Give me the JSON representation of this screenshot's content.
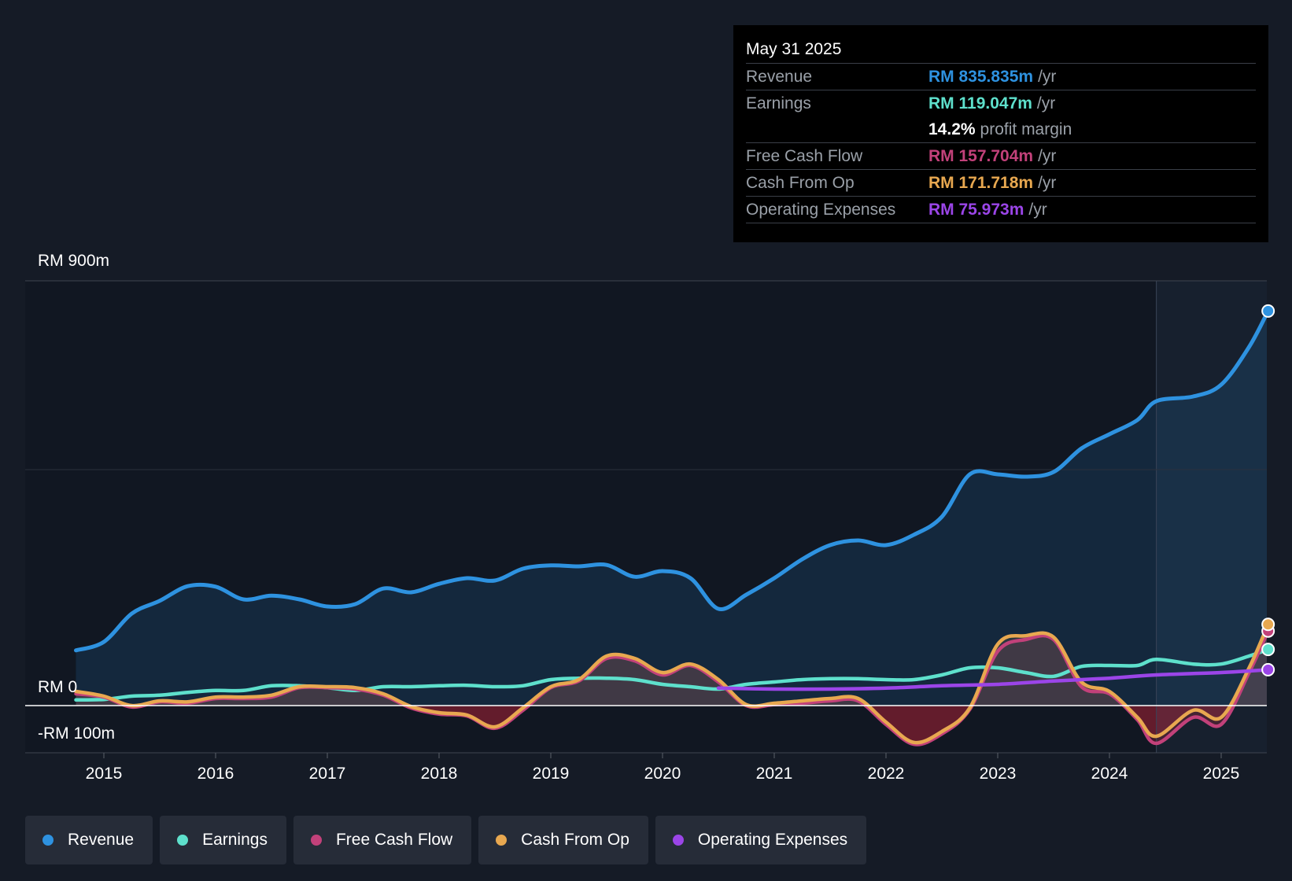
{
  "chart_data": {
    "type": "line",
    "y_axis": {
      "top_label": "RM 900m",
      "zero_label": "RM 0",
      "bottom_label": "-RM 100m",
      "ylim": [
        -100,
        900
      ]
    },
    "x_ticks": [
      "2015",
      "2016",
      "2017",
      "2018",
      "2019",
      "2020",
      "2021",
      "2022",
      "2023",
      "2024",
      "2025"
    ],
    "xlim": [
      2014.75,
      2025.42
    ],
    "forecast_start": 2024.42,
    "series": [
      {
        "name": "Revenue",
        "color": "#2e92e0",
        "fill": true,
        "points": [
          [
            2014.75,
            117
          ],
          [
            2015.0,
            135
          ],
          [
            2015.25,
            195
          ],
          [
            2015.5,
            222
          ],
          [
            2015.75,
            253
          ],
          [
            2016.0,
            252
          ],
          [
            2016.25,
            225
          ],
          [
            2016.5,
            233
          ],
          [
            2016.75,
            225
          ],
          [
            2017.0,
            210
          ],
          [
            2017.25,
            215
          ],
          [
            2017.5,
            248
          ],
          [
            2017.75,
            240
          ],
          [
            2018.0,
            258
          ],
          [
            2018.25,
            270
          ],
          [
            2018.5,
            265
          ],
          [
            2018.75,
            290
          ],
          [
            2019.0,
            297
          ],
          [
            2019.25,
            295
          ],
          [
            2019.5,
            298
          ],
          [
            2019.75,
            273
          ],
          [
            2020.0,
            285
          ],
          [
            2020.25,
            270
          ],
          [
            2020.5,
            205
          ],
          [
            2020.75,
            235
          ],
          [
            2021.0,
            270
          ],
          [
            2021.25,
            310
          ],
          [
            2021.5,
            340
          ],
          [
            2021.75,
            350
          ],
          [
            2022.0,
            340
          ],
          [
            2022.25,
            362
          ],
          [
            2022.5,
            400
          ],
          [
            2022.75,
            490
          ],
          [
            2023.0,
            490
          ],
          [
            2023.25,
            485
          ],
          [
            2023.5,
            495
          ],
          [
            2023.75,
            545
          ],
          [
            2024.0,
            575
          ],
          [
            2024.25,
            605
          ],
          [
            2024.42,
            645
          ],
          [
            2024.75,
            655
          ],
          [
            2025.0,
            680
          ],
          [
            2025.25,
            760
          ],
          [
            2025.42,
            836
          ]
        ]
      },
      {
        "name": "Earnings",
        "color": "#5ee0cc",
        "fill": false,
        "points": [
          [
            2014.75,
            12
          ],
          [
            2015.0,
            13
          ],
          [
            2015.25,
            20
          ],
          [
            2015.5,
            22
          ],
          [
            2015.75,
            28
          ],
          [
            2016.0,
            32
          ],
          [
            2016.25,
            32
          ],
          [
            2016.5,
            42
          ],
          [
            2016.75,
            42
          ],
          [
            2017.0,
            38
          ],
          [
            2017.25,
            32
          ],
          [
            2017.5,
            40
          ],
          [
            2017.75,
            40
          ],
          [
            2018.0,
            42
          ],
          [
            2018.25,
            43
          ],
          [
            2018.5,
            40
          ],
          [
            2018.75,
            42
          ],
          [
            2019.0,
            55
          ],
          [
            2019.25,
            58
          ],
          [
            2019.5,
            58
          ],
          [
            2019.75,
            55
          ],
          [
            2020.0,
            45
          ],
          [
            2020.25,
            40
          ],
          [
            2020.5,
            35
          ],
          [
            2020.75,
            45
          ],
          [
            2021.0,
            50
          ],
          [
            2021.25,
            55
          ],
          [
            2021.5,
            57
          ],
          [
            2021.75,
            57
          ],
          [
            2022.0,
            55
          ],
          [
            2022.25,
            55
          ],
          [
            2022.5,
            65
          ],
          [
            2022.75,
            80
          ],
          [
            2023.0,
            80
          ],
          [
            2023.25,
            70
          ],
          [
            2023.5,
            62
          ],
          [
            2023.75,
            83
          ],
          [
            2024.0,
            85
          ],
          [
            2024.25,
            85
          ],
          [
            2024.42,
            98
          ],
          [
            2024.75,
            88
          ],
          [
            2025.0,
            88
          ],
          [
            2025.25,
            105
          ],
          [
            2025.42,
            119
          ]
        ]
      },
      {
        "name": "Free Cash Flow",
        "color": "#c2417a",
        "fill": false,
        "points": [
          [
            2014.75,
            25
          ],
          [
            2015.0,
            18
          ],
          [
            2015.25,
            -3
          ],
          [
            2015.5,
            8
          ],
          [
            2015.75,
            5
          ],
          [
            2016.0,
            15
          ],
          [
            2016.25,
            15
          ],
          [
            2016.5,
            18
          ],
          [
            2016.75,
            38
          ],
          [
            2017.0,
            38
          ],
          [
            2017.25,
            35
          ],
          [
            2017.5,
            22
          ],
          [
            2017.75,
            -5
          ],
          [
            2018.0,
            -18
          ],
          [
            2018.25,
            -22
          ],
          [
            2018.5,
            -48
          ],
          [
            2018.75,
            -10
          ],
          [
            2019.0,
            38
          ],
          [
            2019.25,
            52
          ],
          [
            2019.5,
            100
          ],
          [
            2019.75,
            95
          ],
          [
            2020.0,
            65
          ],
          [
            2020.25,
            85
          ],
          [
            2020.5,
            50
          ],
          [
            2020.75,
            0
          ],
          [
            2021.0,
            2
          ],
          [
            2021.25,
            5
          ],
          [
            2021.5,
            10
          ],
          [
            2021.75,
            10
          ],
          [
            2022.0,
            -40
          ],
          [
            2022.25,
            -82
          ],
          [
            2022.5,
            -60
          ],
          [
            2022.75,
            -8
          ],
          [
            2023.0,
            115
          ],
          [
            2023.25,
            140
          ],
          [
            2023.5,
            140
          ],
          [
            2023.75,
            40
          ],
          [
            2024.0,
            25
          ],
          [
            2024.25,
            -30
          ],
          [
            2024.42,
            -80
          ],
          [
            2024.75,
            -25
          ],
          [
            2025.0,
            -40
          ],
          [
            2025.25,
            70
          ],
          [
            2025.42,
            158
          ]
        ]
      },
      {
        "name": "Cash From Op",
        "color": "#e8a850",
        "fill": false,
        "points": [
          [
            2014.75,
            30
          ],
          [
            2015.0,
            20
          ],
          [
            2015.25,
            0
          ],
          [
            2015.5,
            10
          ],
          [
            2015.75,
            8
          ],
          [
            2016.0,
            18
          ],
          [
            2016.25,
            18
          ],
          [
            2016.5,
            22
          ],
          [
            2016.75,
            40
          ],
          [
            2017.0,
            40
          ],
          [
            2017.25,
            38
          ],
          [
            2017.5,
            25
          ],
          [
            2017.75,
            -2
          ],
          [
            2018.0,
            -15
          ],
          [
            2018.25,
            -20
          ],
          [
            2018.5,
            -45
          ],
          [
            2018.75,
            -5
          ],
          [
            2019.0,
            40
          ],
          [
            2019.25,
            55
          ],
          [
            2019.5,
            105
          ],
          [
            2019.75,
            100
          ],
          [
            2020.0,
            70
          ],
          [
            2020.25,
            88
          ],
          [
            2020.5,
            55
          ],
          [
            2020.75,
            2
          ],
          [
            2021.0,
            5
          ],
          [
            2021.25,
            10
          ],
          [
            2021.5,
            15
          ],
          [
            2021.75,
            15
          ],
          [
            2022.0,
            -35
          ],
          [
            2022.25,
            -78
          ],
          [
            2022.5,
            -55
          ],
          [
            2022.75,
            -5
          ],
          [
            2023.0,
            130
          ],
          [
            2023.25,
            148
          ],
          [
            2023.5,
            145
          ],
          [
            2023.75,
            50
          ],
          [
            2024.0,
            30
          ],
          [
            2024.25,
            -25
          ],
          [
            2024.42,
            -65
          ],
          [
            2024.75,
            -10
          ],
          [
            2025.0,
            -25
          ],
          [
            2025.25,
            80
          ],
          [
            2025.42,
            172
          ]
        ]
      },
      {
        "name": "Operating Expenses",
        "color": "#9b45e8",
        "fill": false,
        "points": [
          [
            2020.5,
            37
          ],
          [
            2021.0,
            35
          ],
          [
            2021.5,
            35
          ],
          [
            2022.0,
            37
          ],
          [
            2022.5,
            42
          ],
          [
            2023.0,
            45
          ],
          [
            2023.5,
            52
          ],
          [
            2024.0,
            58
          ],
          [
            2024.42,
            65
          ],
          [
            2025.0,
            70
          ],
          [
            2025.42,
            76
          ]
        ]
      }
    ]
  },
  "tooltip": {
    "date": "May 31 2025",
    "rows": [
      {
        "name": "Revenue",
        "value": "RM 835.835m",
        "unit": "/yr",
        "color": "#2e92e0"
      },
      {
        "name": "Earnings",
        "value": "RM 119.047m",
        "unit": "/yr",
        "color": "#5ee0cc"
      },
      {
        "name": "",
        "value": "14.2%",
        "unit": "profit margin",
        "color": "#ffffff"
      },
      {
        "name": "Free Cash Flow",
        "value": "RM 157.704m",
        "unit": "/yr",
        "color": "#c2417a"
      },
      {
        "name": "Cash From Op",
        "value": "RM 171.718m",
        "unit": "/yr",
        "color": "#e8a850"
      },
      {
        "name": "Operating Expenses",
        "value": "RM 75.973m",
        "unit": "/yr",
        "color": "#9b45e8"
      }
    ]
  },
  "legend": [
    {
      "label": "Revenue",
      "color": "#2e92e0"
    },
    {
      "label": "Earnings",
      "color": "#5ee0cc"
    },
    {
      "label": "Free Cash Flow",
      "color": "#c2417a"
    },
    {
      "label": "Cash From Op",
      "color": "#e8a850"
    },
    {
      "label": "Operating Expenses",
      "color": "#9b45e8"
    }
  ]
}
